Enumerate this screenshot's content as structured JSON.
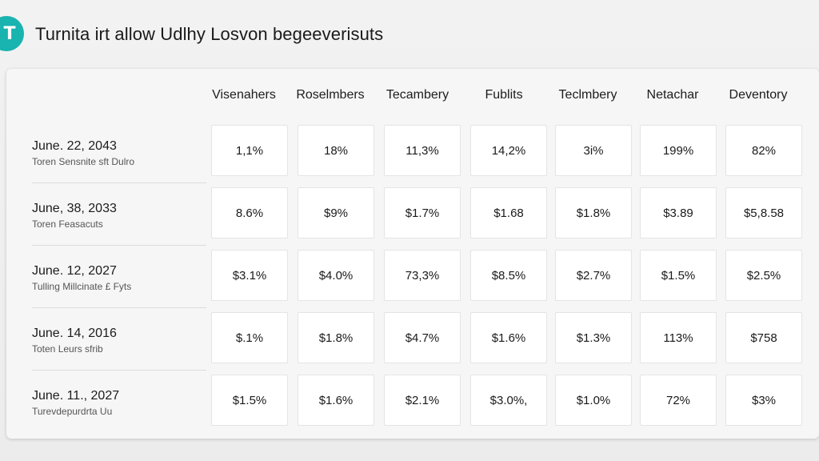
{
  "header": {
    "logo_text": "T",
    "title": "Turnita irt allow Udlhy Losvon begeeverisuts"
  },
  "table": {
    "columns": [
      "Visenahers",
      "Roselmbers",
      "Tecambery",
      "Fublits",
      "Teclmbery",
      "Netachar",
      "Deventory"
    ],
    "rows": [
      {
        "date": "June. 22, 2043",
        "sub": "Toren Sensnite sft Dulro",
        "cells": [
          "1,1%",
          "18%",
          "11,3%",
          "14,2%",
          "3i%",
          "199%",
          "82%"
        ]
      },
      {
        "date": "June, 38, 2033",
        "sub": "Toren Feasacuts",
        "cells": [
          "8.6%",
          "$9%",
          "$1.7%",
          "$1.68",
          "$1.8%",
          "$3.89",
          "$5,8.58"
        ]
      },
      {
        "date": "June. 12, 2027",
        "sub": "Tulling Millcinate £ Fyts",
        "cells": [
          "$3.1%",
          "$4.0%",
          "73,3%",
          "$8.5%",
          "$2.7%",
          "$1.5%",
          "$2.5%"
        ]
      },
      {
        "date": "June. 14, 2016",
        "sub": "Toten Leurs sfrib",
        "cells": [
          "$.1%",
          "$1.8%",
          "$4.7%",
          "$1.6%",
          "$1.3%",
          "113%",
          "$758"
        ]
      },
      {
        "date": "June. 11., 2027",
        "sub": "Turevdepurdrta Uu",
        "cells": [
          "$1.5%",
          "$1.6%",
          "$2.1%",
          "$3.0%,",
          "$1.0%",
          "72%",
          "$3%"
        ]
      }
    ]
  }
}
